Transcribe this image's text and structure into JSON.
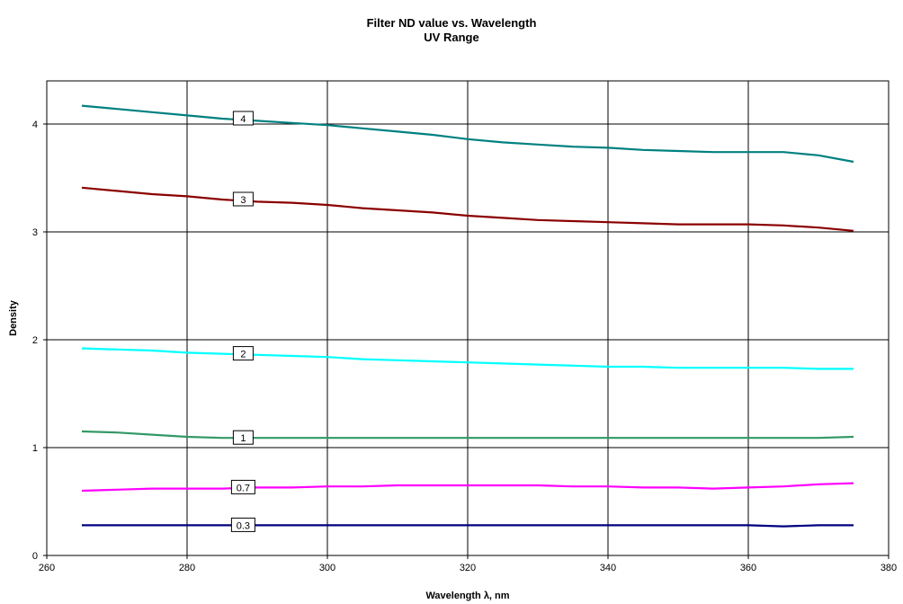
{
  "chart_data": {
    "type": "line",
    "title": "Filter ND value vs. Wavelength",
    "subtitle": "UV Range",
    "xlabel": "Wavelength λ, nm",
    "ylabel": "Density",
    "xlim": [
      260,
      380
    ],
    "ylim": [
      0,
      4.4
    ],
    "xticks": [
      260,
      280,
      300,
      320,
      340,
      360,
      380
    ],
    "yticks": [
      0,
      1,
      2,
      3,
      4
    ],
    "grid": true,
    "legend": "inline labels",
    "x": [
      265,
      270,
      275,
      280,
      285,
      290,
      295,
      300,
      305,
      310,
      315,
      320,
      325,
      330,
      335,
      340,
      345,
      350,
      355,
      360,
      365,
      370,
      375
    ],
    "series": [
      {
        "name": "4",
        "color": "#008080",
        "values": [
          4.17,
          4.14,
          4.11,
          4.08,
          4.05,
          4.03,
          4.01,
          3.99,
          3.96,
          3.93,
          3.9,
          3.86,
          3.83,
          3.81,
          3.79,
          3.78,
          3.76,
          3.75,
          3.74,
          3.74,
          3.74,
          3.71,
          3.65
        ]
      },
      {
        "name": "3",
        "color": "#8b0000",
        "values": [
          3.41,
          3.38,
          3.35,
          3.33,
          3.3,
          3.28,
          3.27,
          3.25,
          3.22,
          3.2,
          3.18,
          3.15,
          3.13,
          3.11,
          3.1,
          3.09,
          3.08,
          3.07,
          3.07,
          3.07,
          3.06,
          3.04,
          3.01
        ]
      },
      {
        "name": "2",
        "color": "#00ffff",
        "values": [
          1.92,
          1.91,
          1.9,
          1.88,
          1.87,
          1.86,
          1.85,
          1.84,
          1.82,
          1.81,
          1.8,
          1.79,
          1.78,
          1.77,
          1.76,
          1.75,
          1.75,
          1.74,
          1.74,
          1.74,
          1.74,
          1.73,
          1.73
        ]
      },
      {
        "name": "1",
        "color": "#339966",
        "values": [
          1.15,
          1.14,
          1.12,
          1.1,
          1.09,
          1.09,
          1.09,
          1.09,
          1.09,
          1.09,
          1.09,
          1.09,
          1.09,
          1.09,
          1.09,
          1.09,
          1.09,
          1.09,
          1.09,
          1.09,
          1.09,
          1.09,
          1.1
        ]
      },
      {
        "name": "0.7",
        "color": "#ff00ff",
        "values": [
          0.6,
          0.61,
          0.62,
          0.62,
          0.62,
          0.63,
          0.63,
          0.64,
          0.64,
          0.65,
          0.65,
          0.65,
          0.65,
          0.65,
          0.64,
          0.64,
          0.63,
          0.63,
          0.62,
          0.63,
          0.64,
          0.66,
          0.67
        ]
      },
      {
        "name": "0.3",
        "color": "#000080",
        "values": [
          0.28,
          0.28,
          0.28,
          0.28,
          0.28,
          0.28,
          0.28,
          0.28,
          0.28,
          0.28,
          0.28,
          0.28,
          0.28,
          0.28,
          0.28,
          0.28,
          0.28,
          0.28,
          0.28,
          0.28,
          0.27,
          0.28,
          0.28
        ]
      }
    ],
    "series_labels": [
      {
        "text": "4",
        "x": 288,
        "y": 4.05
      },
      {
        "text": "3",
        "x": 288,
        "y": 3.3
      },
      {
        "text": "2",
        "x": 288,
        "y": 1.87
      },
      {
        "text": "1",
        "x": 288,
        "y": 1.09
      },
      {
        "text": "0.7",
        "x": 288,
        "y": 0.63
      },
      {
        "text": "0.3",
        "x": 288,
        "y": 0.28
      }
    ]
  }
}
